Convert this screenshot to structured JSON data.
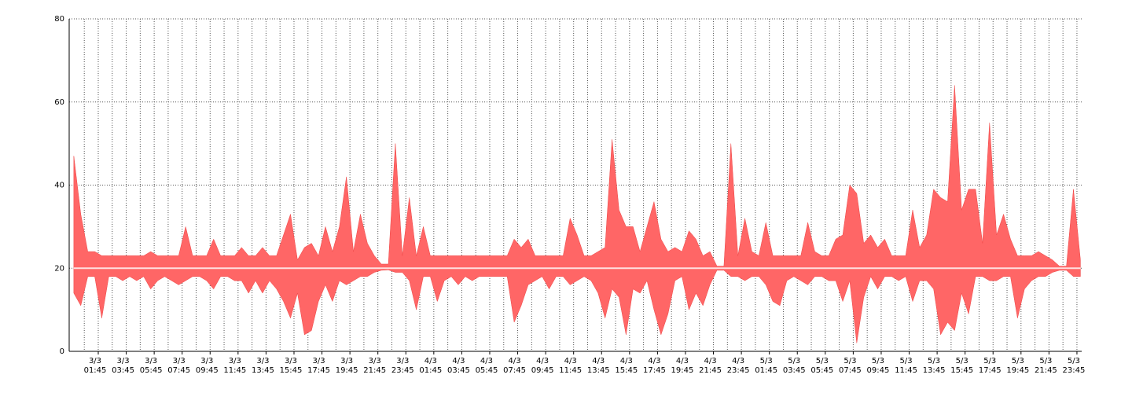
{
  "chart_data": {
    "type": "band",
    "x": [
      0,
      0.5,
      1,
      1.5,
      2,
      2.5,
      3,
      3.5,
      4,
      4.5,
      5,
      5.5,
      6,
      6.5,
      7,
      7.5,
      8,
      8.5,
      9,
      9.5,
      10,
      10.5,
      11,
      11.5,
      12,
      12.5,
      13,
      13.5,
      14,
      14.5,
      15,
      15.5,
      16,
      16.5,
      17,
      17.5,
      18,
      18.5,
      19,
      19.5,
      20,
      20.5,
      21,
      21.5,
      22,
      22.5,
      23,
      23.5,
      24,
      24.5,
      25,
      25.5,
      26,
      26.5,
      27,
      27.5,
      28,
      28.5,
      29,
      29.5,
      30,
      30.5,
      31,
      31.5,
      32,
      32.5,
      33,
      33.5,
      34,
      34.5,
      35,
      35.5,
      36,
      36.5,
      37,
      37.5,
      38,
      38.5,
      39,
      39.5,
      40,
      40.5,
      41,
      41.5,
      42,
      42.5,
      43,
      43.5,
      44,
      44.5,
      45,
      45.5,
      46,
      46.5,
      47,
      47.5,
      48,
      48.5,
      49,
      49.5,
      50,
      50.5,
      51,
      51.5,
      52,
      52.5,
      53,
      53.5,
      54,
      54.5,
      55,
      55.5,
      56,
      56.5,
      57,
      57.5,
      58,
      58.5,
      59,
      59.5,
      60,
      60.5,
      61,
      61.5,
      62,
      62.5,
      63,
      63.5,
      64,
      64.5,
      65,
      65.5,
      66,
      66.5,
      67,
      67.5,
      68,
      68.5,
      69,
      69.5,
      70,
      70.5,
      71,
      71.5,
      72
    ],
    "series": [
      {
        "color": "#ff6666",
        "values": [
          47,
          33,
          24,
          24,
          23,
          23,
          23,
          23,
          23,
          23,
          23,
          24,
          23,
          23,
          23,
          23,
          30,
          23,
          23,
          23,
          27,
          23,
          23,
          23,
          25,
          23,
          23,
          25,
          23,
          23,
          28,
          33,
          22,
          25,
          26,
          23,
          30,
          24,
          30,
          42,
          24,
          33,
          26,
          23,
          21,
          21,
          50,
          23,
          37,
          23,
          30,
          23,
          23,
          23,
          23,
          23,
          23,
          23,
          23,
          23,
          23,
          23,
          23,
          27,
          25,
          27,
          23,
          23,
          23,
          23,
          23,
          32,
          28,
          23,
          23,
          24,
          25,
          51,
          34,
          30,
          30,
          24,
          30,
          36,
          27,
          24,
          25,
          24,
          29,
          27,
          23,
          24,
          20.5,
          20.5,
          50,
          23,
          32,
          24,
          23,
          31,
          23,
          23,
          23,
          23,
          23,
          31,
          24,
          23,
          23,
          27,
          28,
          40,
          38,
          26,
          28,
          25,
          27,
          23,
          23,
          23,
          34,
          25,
          28,
          39,
          37,
          36,
          64,
          34,
          39,
          39,
          26,
          55,
          28,
          33,
          27,
          23,
          23,
          23,
          24,
          23,
          22,
          20.5,
          20.5,
          39,
          22
        ]
      },
      {
        "color": "#ff6666",
        "values": [
          14,
          11,
          18,
          18,
          8,
          18,
          18,
          17,
          18,
          17,
          18,
          15,
          17,
          18,
          17,
          16,
          17,
          18,
          18,
          17,
          15,
          18,
          18,
          17,
          17,
          14,
          17,
          14,
          17,
          15,
          12,
          8,
          14,
          4,
          5,
          12,
          16,
          12,
          17,
          16,
          17,
          18,
          18,
          19,
          19.5,
          19.6,
          19,
          19,
          17,
          10,
          18,
          18,
          12,
          17,
          18,
          16,
          18,
          17,
          18,
          18,
          18,
          18,
          18,
          7,
          11,
          16,
          17,
          18,
          15,
          18,
          18,
          16,
          17,
          18,
          17,
          14,
          8,
          15,
          13,
          4,
          15,
          14,
          17,
          10,
          4,
          9,
          17,
          18,
          10,
          14,
          11,
          16,
          19.5,
          19.5,
          18,
          18,
          17,
          18,
          18,
          16,
          12,
          11,
          17,
          18,
          17,
          16,
          18,
          18,
          17,
          17,
          12,
          17,
          2,
          13,
          18,
          15,
          18,
          18,
          17,
          18,
          12,
          17,
          17,
          15,
          4,
          7,
          5,
          14,
          9,
          18,
          18,
          17,
          17,
          18,
          18,
          8,
          15,
          17,
          18,
          18,
          19,
          19.5,
          19.5,
          18,
          18
        ]
      },
      {
        "color": "#ffe0e0",
        "values": [
          20,
          20,
          20,
          20,
          20,
          20,
          20,
          20,
          20,
          20,
          20,
          20,
          20,
          20,
          20,
          20,
          20,
          20,
          20,
          20,
          20,
          20,
          20,
          20,
          20,
          20,
          20,
          20,
          20,
          20,
          20,
          20,
          20,
          20,
          20,
          20,
          20,
          20,
          20,
          20,
          20,
          20,
          20,
          20,
          20,
          20,
          20,
          20,
          20,
          20,
          20,
          20,
          20,
          20,
          20,
          20,
          20,
          20,
          20,
          20,
          20,
          20,
          20,
          20,
          20,
          20,
          20,
          20,
          20,
          20,
          20,
          20,
          20,
          20,
          20,
          20,
          20,
          20,
          20,
          20,
          20,
          20,
          20,
          20,
          20,
          20,
          20,
          20,
          20,
          20,
          20,
          20,
          20,
          20,
          20,
          20,
          20,
          20,
          20,
          20,
          20,
          20,
          20,
          20,
          20,
          20,
          20,
          20,
          20,
          20,
          20,
          20,
          20,
          20,
          20,
          20,
          20,
          20,
          20,
          20,
          20,
          20,
          20,
          20,
          20,
          20,
          20,
          20,
          20,
          20,
          20,
          20,
          20,
          20,
          20,
          20,
          20,
          20,
          20,
          20,
          20,
          20,
          20,
          20,
          20
        ]
      }
    ],
    "xlim": [
      -0.33,
      72.09
    ],
    "xticks": [
      {
        "value": 1.75,
        "label": [
          "3/3",
          "01:45"
        ]
      },
      {
        "value": 3.75,
        "label": [
          "3/3",
          "03:45"
        ]
      },
      {
        "value": 5.75,
        "label": [
          "3/3",
          "05:45"
        ]
      },
      {
        "value": 7.75,
        "label": [
          "3/3",
          "07:45"
        ]
      },
      {
        "value": 9.75,
        "label": [
          "3/3",
          "09:45"
        ]
      },
      {
        "value": 11.75,
        "label": [
          "3/3",
          "11:45"
        ]
      },
      {
        "value": 13.75,
        "label": [
          "3/3",
          "13:45"
        ]
      },
      {
        "value": 15.75,
        "label": [
          "3/3",
          "15:45"
        ]
      },
      {
        "value": 17.75,
        "label": [
          "3/3",
          "17:45"
        ]
      },
      {
        "value": 19.75,
        "label": [
          "3/3",
          "19:45"
        ]
      },
      {
        "value": 21.75,
        "label": [
          "3/3",
          "21:45"
        ]
      },
      {
        "value": 23.75,
        "label": [
          "3/3",
          "23:45"
        ]
      },
      {
        "value": 25.75,
        "label": [
          "4/3",
          "01:45"
        ]
      },
      {
        "value": 27.75,
        "label": [
          "4/3",
          "03:45"
        ]
      },
      {
        "value": 29.75,
        "label": [
          "4/3",
          "05:45"
        ]
      },
      {
        "value": 31.75,
        "label": [
          "4/3",
          "07:45"
        ]
      },
      {
        "value": 33.75,
        "label": [
          "4/3",
          "09:45"
        ]
      },
      {
        "value": 35.75,
        "label": [
          "4/3",
          "11:45"
        ]
      },
      {
        "value": 37.75,
        "label": [
          "4/3",
          "13:45"
        ]
      },
      {
        "value": 39.75,
        "label": [
          "4/3",
          "15:45"
        ]
      },
      {
        "value": 41.75,
        "label": [
          "4/3",
          "17:45"
        ]
      },
      {
        "value": 43.75,
        "label": [
          "4/3",
          "19:45"
        ]
      },
      {
        "value": 45.75,
        "label": [
          "4/3",
          "21:45"
        ]
      },
      {
        "value": 47.75,
        "label": [
          "4/3",
          "23:45"
        ]
      },
      {
        "value": 49.75,
        "label": [
          "5/3",
          "01:45"
        ]
      },
      {
        "value": 51.75,
        "label": [
          "5/3",
          "03:45"
        ]
      },
      {
        "value": 53.75,
        "label": [
          "5/3",
          "05:45"
        ]
      },
      {
        "value": 55.75,
        "label": [
          "5/3",
          "07:45"
        ]
      },
      {
        "value": 57.75,
        "label": [
          "5/3",
          "09:45"
        ]
      },
      {
        "value": 59.75,
        "label": [
          "5/3",
          "11:45"
        ]
      },
      {
        "value": 61.75,
        "label": [
          "5/3",
          "13:45"
        ]
      },
      {
        "value": 63.75,
        "label": [
          "5/3",
          "15:45"
        ]
      },
      {
        "value": 65.75,
        "label": [
          "5/3",
          "17:45"
        ]
      },
      {
        "value": 67.75,
        "label": [
          "5/3",
          "19:45"
        ]
      },
      {
        "value": 69.75,
        "label": [
          "5/3",
          "21:45"
        ]
      },
      {
        "value": 71.75,
        "label": [
          "5/3",
          "23:45"
        ]
      }
    ],
    "xminorticks": [
      0.75,
      2.75,
      4.75,
      6.75,
      8.75,
      10.75,
      12.75,
      14.75,
      16.75,
      18.75,
      20.75,
      22.75,
      24.75,
      26.75,
      28.75,
      30.75,
      32.75,
      34.75,
      36.75,
      38.75,
      40.75,
      42.75,
      44.75,
      46.75,
      48.75,
      50.75,
      52.75,
      54.75,
      56.75,
      58.75,
      60.75,
      62.75,
      64.75,
      66.75,
      68.75,
      70.75
    ],
    "ylim": [
      0,
      80
    ],
    "yticks": [
      0,
      20,
      40,
      60,
      80
    ],
    "grid": true
  }
}
